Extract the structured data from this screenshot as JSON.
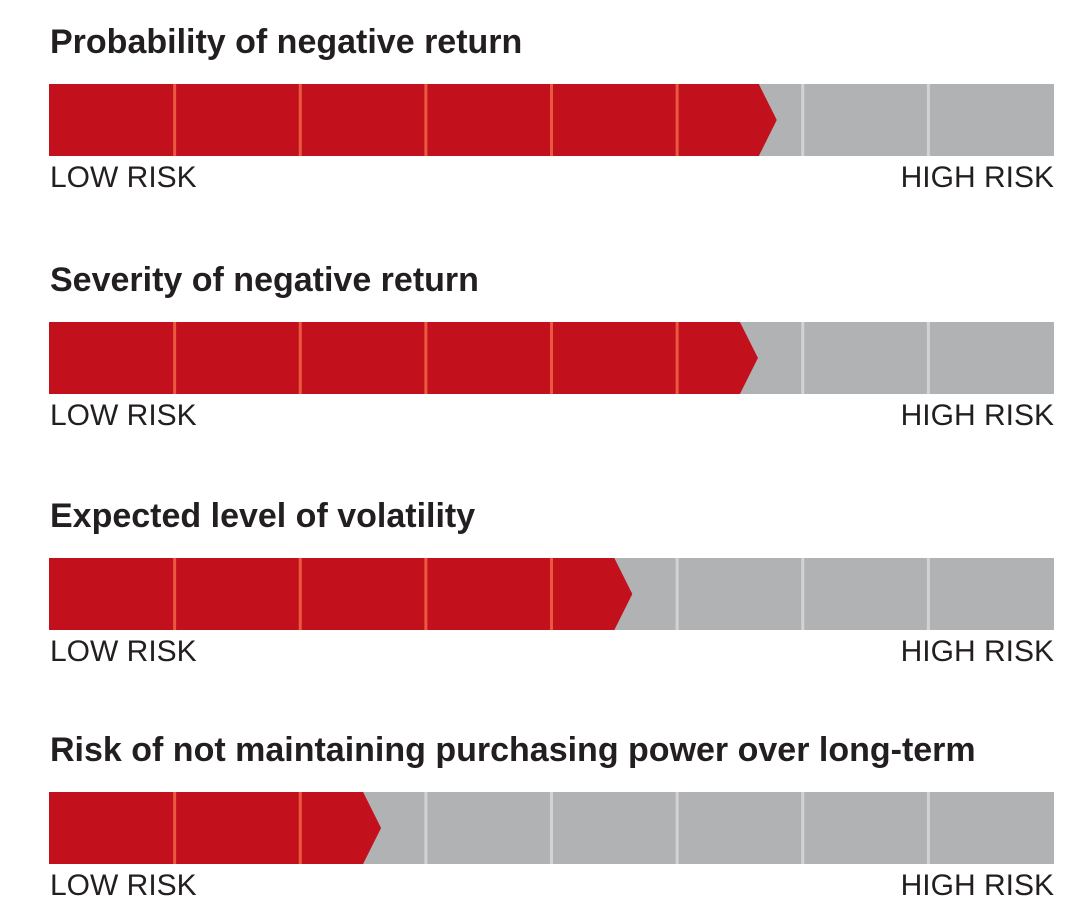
{
  "colors": {
    "filled": "#c2101c",
    "empty": "#b1b2b4",
    "filled_divider": "#e9583f",
    "empty_divider": "#d2d3d5",
    "text": "#231f20"
  },
  "chart_data": [
    {
      "type": "bar",
      "title": "Probability of negative return",
      "segments_total": 8,
      "level": 5.65,
      "scale_labels": {
        "low": "LOW RISK",
        "high": "HIGH RISK"
      }
    },
    {
      "type": "bar",
      "title": "Severity of negative return",
      "segments_total": 8,
      "level": 5.5,
      "scale_labels": {
        "low": "LOW RISK",
        "high": "HIGH RISK"
      }
    },
    {
      "type": "bar",
      "title": "Expected level of volatility",
      "segments_total": 8,
      "level": 4.5,
      "scale_labels": {
        "low": "LOW RISK",
        "high": "HIGH RISK"
      }
    },
    {
      "type": "bar",
      "title": "Risk of not maintaining purchasing power over long-term",
      "segments_total": 8,
      "level": 2.5,
      "scale_labels": {
        "low": "LOW RISK",
        "high": "HIGH RISK"
      }
    }
  ]
}
